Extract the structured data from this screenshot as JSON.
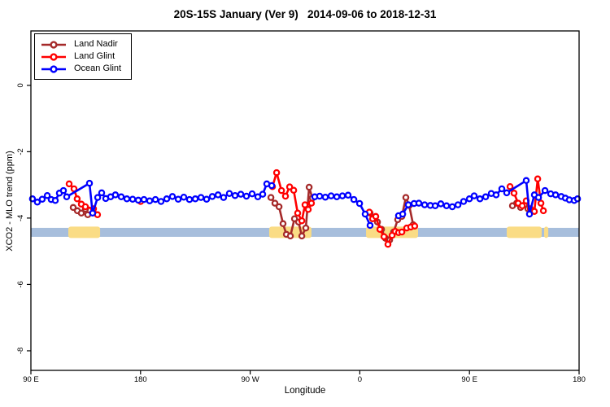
{
  "chart_data": {
    "type": "line",
    "title": "20S-15S January (Ver 9)   2014-09-06 to 2018-12-31",
    "xlabel": "Longitude",
    "ylabel": "XCO2 - MLO trend (ppm)",
    "xlim": [
      90,
      540
    ],
    "ylim": [
      -8.59,
      1.64
    ],
    "grid": false,
    "legend_position": "top-left",
    "x_ticks": [
      {
        "value": 90,
        "label": "90 E"
      },
      {
        "value": 180,
        "label": "180"
      },
      {
        "value": 270,
        "label": "90 W"
      },
      {
        "value": 360,
        "label": "0"
      },
      {
        "value": 450,
        "label": "90 E"
      },
      {
        "value": 540,
        "label": "180"
      }
    ],
    "y_ticks": [
      {
        "value": 0,
        "label": "0"
      },
      {
        "value": -2,
        "label": "-2"
      },
      {
        "value": -4,
        "label": "-4"
      },
      {
        "value": -6,
        "label": "-6"
      },
      {
        "value": -8,
        "label": "-8"
      }
    ],
    "band": {
      "note": "land/ocean strip along 20S-15S latitude band",
      "y_top": -4.295,
      "y_bottom": -4.565,
      "ocean_color": "#A7BEDC",
      "land_color": "#FADC85",
      "land_segments": [
        [
          120.7,
          146.8
        ],
        [
          285.6,
          320.3
        ],
        [
          365.1,
          407.8
        ],
        [
          480.6,
          509.3
        ],
        [
          511.3,
          514.7
        ]
      ]
    },
    "series": [
      {
        "name": "Land Nadir",
        "color": "#A52A2A",
        "segments": [
          [
            [
              124.7,
              -3.68
            ],
            [
              128.1,
              -3.78
            ],
            [
              131.4,
              -3.85
            ],
            [
              134.7,
              -3.73
            ],
            [
              136.7,
              -3.9
            ]
          ],
          [
            [
              287,
              -3.38
            ],
            [
              290.3,
              -3.55
            ],
            [
              293.7,
              -3.66
            ],
            [
              297,
              -4.17
            ],
            [
              299.7,
              -4.49
            ],
            [
              303,
              -4.54
            ],
            [
              306.4,
              -4.02
            ],
            [
              309.7,
              -4.12
            ],
            [
              312.4,
              -4.54
            ],
            [
              315.7,
              -4.3
            ],
            [
              318.4,
              -3.07
            ],
            [
              321,
              -3.4
            ]
          ],
          [
            [
              368.4,
              -3.85
            ],
            [
              371.1,
              -3.98
            ],
            [
              374.5,
              -4.12
            ],
            [
              377.8,
              -4.34
            ],
            [
              381.1,
              -4.61
            ],
            [
              384.5,
              -4.66
            ],
            [
              387.8,
              -4.42
            ],
            [
              391.1,
              -4.05
            ],
            [
              394.5,
              -3.95
            ],
            [
              397.8,
              -3.38
            ],
            [
              400.5,
              -3.62
            ],
            [
              403.8,
              -4.2
            ]
          ],
          [
            [
              485.3,
              -3.63
            ],
            [
              488.7,
              -3.55
            ],
            [
              492,
              -3.68
            ],
            [
              495.3,
              -3.6
            ],
            [
              498,
              -3.72
            ]
          ]
        ]
      },
      {
        "name": "Land Glint",
        "color": "#FF0000",
        "segments": [
          [
            [
              121.4,
              -2.97
            ],
            [
              125.4,
              -3.12
            ],
            [
              128,
              -3.42
            ],
            [
              131.4,
              -3.58
            ],
            [
              134.7,
              -3.66
            ],
            [
              141.4,
              -3.72
            ],
            [
              144.7,
              -3.9
            ]
          ],
          [
            [
              180.1,
              -3.5
            ]
          ],
          [
            [
              288.3,
              -3.05
            ],
            [
              291.7,
              -2.63
            ],
            [
              295.7,
              -3.17
            ],
            [
              299,
              -3.34
            ],
            [
              302.4,
              -3.06
            ],
            [
              305.7,
              -3.16
            ],
            [
              309,
              -3.85
            ],
            [
              312.4,
              -4.08
            ],
            [
              315,
              -3.6
            ],
            [
              317.7,
              -3.74
            ],
            [
              320.3,
              -3.55
            ]
          ],
          [
            [
              367.8,
              -3.82
            ],
            [
              370.5,
              -4.02
            ],
            [
              373.1,
              -3.95
            ],
            [
              376.5,
              -4.34
            ],
            [
              379.8,
              -4.56
            ],
            [
              383.1,
              -4.79
            ],
            [
              386.5,
              -4.52
            ],
            [
              389.1,
              -4.4
            ],
            [
              391.8,
              -4.44
            ],
            [
              394.5,
              -4.42
            ],
            [
              398.5,
              -4.3
            ],
            [
              401.8,
              -4.27
            ],
            [
              405.1,
              -4.24
            ]
          ],
          [
            [
              483.3,
              -3.05
            ],
            [
              486.6,
              -3.25
            ],
            [
              490,
              -3.55
            ],
            [
              493.3,
              -3.63
            ],
            [
              496.6,
              -3.48
            ],
            [
              500,
              -3.72
            ],
            [
              503.3,
              -3.8
            ],
            [
              506,
              -2.82
            ],
            [
              508.7,
              -3.55
            ],
            [
              510.7,
              -3.78
            ]
          ]
        ]
      },
      {
        "name": "Ocean Glint",
        "color": "#0000FF",
        "segments": [
          [
            [
              91.3,
              -3.42
            ],
            [
              95.3,
              -3.52
            ],
            [
              99.3,
              -3.43
            ],
            [
              103.4,
              -3.32
            ],
            [
              106.7,
              -3.44
            ],
            [
              110,
              -3.47
            ],
            [
              113.4,
              -3.25
            ],
            [
              116.7,
              -3.17
            ],
            [
              119.4,
              -3.36
            ],
            [
              138.1,
              -2.95
            ],
            [
              140.7,
              -3.85
            ],
            [
              144.8,
              -3.38
            ],
            [
              148.1,
              -3.24
            ],
            [
              151.4,
              -3.41
            ],
            [
              155.4,
              -3.36
            ],
            [
              159.4,
              -3.3
            ],
            [
              164.1,
              -3.36
            ],
            [
              168.8,
              -3.42
            ],
            [
              173.5,
              -3.43
            ],
            [
              178.1,
              -3.46
            ],
            [
              182.8,
              -3.44
            ],
            [
              187.5,
              -3.48
            ],
            [
              192.2,
              -3.44
            ],
            [
              196.8,
              -3.5
            ],
            [
              201.5,
              -3.42
            ],
            [
              206.2,
              -3.35
            ],
            [
              210.9,
              -3.43
            ],
            [
              215.5,
              -3.37
            ],
            [
              220.2,
              -3.44
            ],
            [
              224.9,
              -3.42
            ],
            [
              229.6,
              -3.38
            ],
            [
              234.2,
              -3.43
            ],
            [
              238.9,
              -3.35
            ],
            [
              243.6,
              -3.3
            ],
            [
              248.2,
              -3.38
            ],
            [
              252.9,
              -3.26
            ],
            [
              257.6,
              -3.32
            ],
            [
              262.3,
              -3.28
            ],
            [
              266.9,
              -3.34
            ],
            [
              271.6,
              -3.27
            ],
            [
              276.3,
              -3.36
            ],
            [
              280.3,
              -3.28
            ],
            [
              283.6,
              -2.97
            ],
            [
              287.7,
              -3.02
            ]
          ],
          [
            [
              323,
              -3.36
            ],
            [
              327,
              -3.34
            ],
            [
              331.7,
              -3.37
            ],
            [
              336.4,
              -3.33
            ],
            [
              341.1,
              -3.36
            ],
            [
              345.7,
              -3.33
            ],
            [
              350.4,
              -3.31
            ],
            [
              355.1,
              -3.44
            ],
            [
              359.8,
              -3.56
            ],
            [
              364.4,
              -3.88
            ],
            [
              368.4,
              -4.22
            ]
          ],
          [
            [
              391.8,
              -3.93
            ],
            [
              395.2,
              -3.88
            ],
            [
              399.8,
              -3.6
            ],
            [
              404.5,
              -3.56
            ],
            [
              408.5,
              -3.55
            ],
            [
              413.2,
              -3.6
            ],
            [
              417.9,
              -3.62
            ],
            [
              421.9,
              -3.63
            ],
            [
              426.5,
              -3.57
            ],
            [
              431.2,
              -3.63
            ],
            [
              435.9,
              -3.66
            ],
            [
              440.6,
              -3.6
            ],
            [
              445.2,
              -3.5
            ],
            [
              449.9,
              -3.42
            ],
            [
              453.9,
              -3.33
            ],
            [
              458.6,
              -3.42
            ],
            [
              463.3,
              -3.36
            ],
            [
              467.9,
              -3.26
            ],
            [
              471.9,
              -3.3
            ],
            [
              476.6,
              -3.12
            ],
            [
              480.6,
              -3.24
            ],
            [
              496.6,
              -2.87
            ],
            [
              499.3,
              -3.88
            ],
            [
              503.3,
              -3.3
            ],
            [
              506.7,
              -3.38
            ],
            [
              512,
              -3.17
            ],
            [
              516.7,
              -3.27
            ],
            [
              520.7,
              -3.3
            ],
            [
              525.3,
              -3.35
            ],
            [
              528.7,
              -3.4
            ],
            [
              532,
              -3.45
            ],
            [
              536,
              -3.47
            ],
            [
              538.7,
              -3.42
            ]
          ]
        ]
      }
    ],
    "legend": {
      "items": [
        "Land Nadir",
        "Land Glint",
        "Ocean Glint"
      ]
    }
  }
}
